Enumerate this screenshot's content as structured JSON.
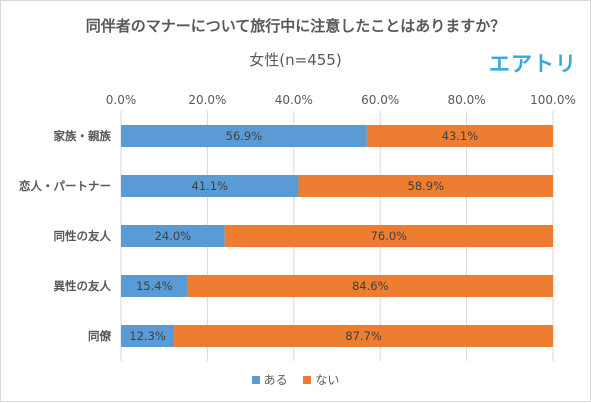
{
  "title": "同伴者のマナーについて旅行中に注意したことはありますか？",
  "subtitle": "女性(n=455)",
  "logo_text": "エアトリ",
  "colors": {
    "series_0": "#5b9bd5",
    "series_1": "#ed7d31",
    "grid": "#d9d9d9",
    "text": "#595959",
    "logo": "#3aa6e0"
  },
  "chart_data": {
    "type": "bar",
    "orientation": "horizontal",
    "stacked": true,
    "categories": [
      "家族・親族",
      "恋人・パートナー",
      "同性の友人",
      "異性の友人",
      "同僚"
    ],
    "series": [
      {
        "name": "ある",
        "values": [
          56.9,
          41.1,
          24.0,
          15.4,
          12.3
        ],
        "labels": [
          "56.9%",
          "41.1%",
          "24.0%",
          "15.4%",
          "12.3%"
        ]
      },
      {
        "name": "ない",
        "values": [
          43.1,
          58.9,
          76.0,
          84.6,
          87.7
        ],
        "labels": [
          "43.1%",
          "58.9%",
          "76.0%",
          "84.6%",
          "87.7%"
        ]
      }
    ],
    "x_ticks": [
      "0.0%",
      "20.0%",
      "40.0%",
      "60.0%",
      "80.0%",
      "100.0%"
    ],
    "xlim": [
      0,
      100
    ],
    "grid": true,
    "axis_position": "top",
    "legend_position": "bottom"
  }
}
